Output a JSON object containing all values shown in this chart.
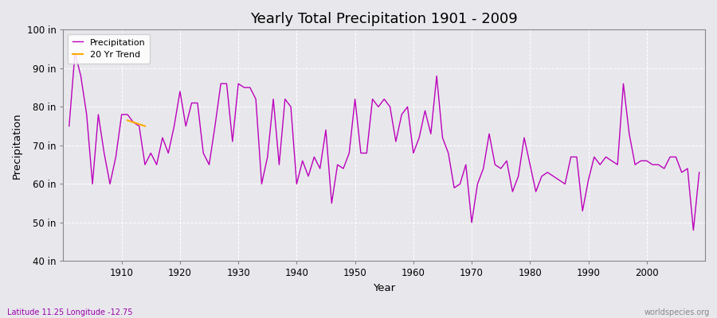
{
  "title": "Yearly Total Precipitation 1901 - 2009",
  "xlabel": "Year",
  "ylabel": "Precipitation",
  "subtitle_lat": "Latitude 11.25 Longitude -12.75",
  "watermark": "worldspecies.org",
  "ylim": [
    40,
    100
  ],
  "ytick_labels": [
    "40 in",
    "50 in",
    "60 in",
    "70 in",
    "80 in",
    "90 in",
    "100 in"
  ],
  "ytick_values": [
    40,
    50,
    60,
    70,
    80,
    90,
    100
  ],
  "line_color": "#bb00bb",
  "trend_color": "#ffaa00",
  "bg_color": "#e8e8ec",
  "plot_bg_color": "#e8e8ec",
  "legend_label_precip": "Precipitation",
  "legend_label_trend": "20 Yr Trend",
  "trend_years": [
    1911,
    1912,
    1913,
    1914
  ],
  "trend_values": [
    76.5,
    76.0,
    75.5,
    75.0
  ],
  "years": [
    1901,
    1902,
    1903,
    1904,
    1905,
    1906,
    1907,
    1908,
    1909,
    1910,
    1911,
    1912,
    1913,
    1914,
    1915,
    1916,
    1917,
    1918,
    1919,
    1920,
    1921,
    1922,
    1923,
    1924,
    1925,
    1926,
    1927,
    1928,
    1929,
    1930,
    1931,
    1932,
    1933,
    1934,
    1935,
    1936,
    1937,
    1938,
    1939,
    1940,
    1941,
    1942,
    1943,
    1944,
    1945,
    1946,
    1947,
    1948,
    1949,
    1950,
    1951,
    1952,
    1953,
    1954,
    1955,
    1956,
    1957,
    1958,
    1959,
    1960,
    1961,
    1962,
    1963,
    1964,
    1965,
    1966,
    1967,
    1968,
    1969,
    1970,
    1971,
    1972,
    1973,
    1974,
    1975,
    1976,
    1977,
    1978,
    1979,
    1980,
    1981,
    1982,
    1983,
    1984,
    1985,
    1986,
    1987,
    1988,
    1989,
    1990,
    1991,
    1992,
    1993,
    1994,
    1995,
    1996,
    1997,
    1998,
    1999,
    2000,
    2001,
    2002,
    2003,
    2004,
    2005,
    2006,
    2007,
    2008,
    2009
  ],
  "values": [
    75,
    94,
    88,
    78,
    60,
    78,
    68,
    60,
    67,
    78,
    78,
    76,
    75,
    65,
    68,
    65,
    72,
    68,
    75,
    84,
    75,
    81,
    81,
    68,
    65,
    75,
    86,
    86,
    71,
    86,
    85,
    85,
    82,
    60,
    67,
    82,
    65,
    82,
    80,
    60,
    66,
    62,
    67,
    64,
    74,
    55,
    65,
    64,
    68,
    82,
    68,
    68,
    82,
    80,
    82,
    80,
    71,
    78,
    80,
    68,
    72,
    79,
    73,
    88,
    72,
    68,
    59,
    60,
    65,
    50,
    60,
    64,
    73,
    65,
    64,
    66,
    58,
    62,
    72,
    65,
    58,
    62,
    63,
    62,
    61,
    60,
    67,
    67,
    53,
    61,
    67,
    65,
    67,
    66,
    65,
    86,
    73,
    65,
    66,
    66,
    65,
    65,
    64,
    67,
    67,
    63,
    64,
    48,
    63
  ]
}
